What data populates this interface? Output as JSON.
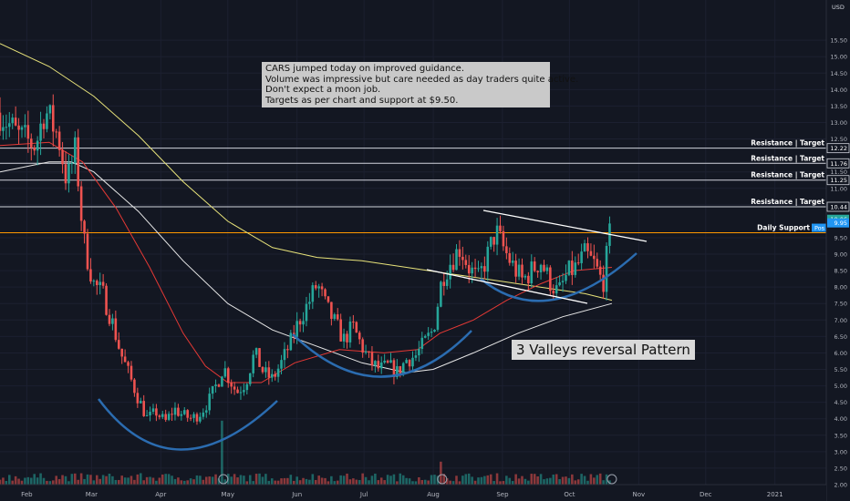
{
  "chart_data": {
    "type": "candlestick",
    "currency": "USD",
    "ylim": [
      2.0,
      16.5
    ],
    "x_labels": [
      {
        "label": "Feb",
        "day": 0
      },
      {
        "label": "Mar",
        "day": 29
      },
      {
        "label": "Apr",
        "day": 60
      },
      {
        "label": "May",
        "day": 90
      },
      {
        "label": "Jun",
        "day": 121
      },
      {
        "label": "Jul",
        "day": 151
      },
      {
        "label": "Aug",
        "day": 182
      },
      {
        "label": "Sep",
        "day": 213
      },
      {
        "label": "Oct",
        "day": 243
      },
      {
        "label": "Nov",
        "day": 274
      },
      {
        "label": "Dec",
        "day": 304
      },
      {
        "label": "2021",
        "day": 335
      }
    ],
    "x_range": [
      -12,
      358
    ],
    "y_ticks": [
      2.0,
      2.5,
      3.0,
      3.5,
      4.0,
      4.5,
      5.0,
      5.5,
      6.0,
      6.5,
      7.0,
      7.5,
      8.0,
      8.5,
      9.0,
      9.5,
      10.5,
      11.0,
      11.5,
      12.5,
      13.0,
      13.5,
      14.0,
      14.5,
      15.0,
      15.5
    ],
    "price_badges": [
      {
        "value": 10.44,
        "text": "10.44",
        "style": "outline"
      },
      {
        "value": 12.22,
        "text": "12.22",
        "style": "outline"
      },
      {
        "value": 11.76,
        "text": "11.76",
        "style": "outline"
      },
      {
        "value": 11.25,
        "text": "11.25",
        "style": "outline"
      },
      {
        "value": 10.06,
        "text": "10.06",
        "color": "#26a69a"
      },
      {
        "value": 9.95,
        "text": "9.95",
        "color": "#2196f3"
      }
    ],
    "resistance_lines": [
      {
        "value": 12.22,
        "label": "Resistance | Target"
      },
      {
        "value": 11.76,
        "label": "Resistance | Target"
      },
      {
        "value": 11.25,
        "label": "Resistance | Target"
      },
      {
        "value": 10.44,
        "label": "Resistance | Target"
      }
    ],
    "support_line": {
      "value": 9.65,
      "label": "Daily Support",
      "tag": "Pos",
      "color": "#ff9800"
    },
    "annotation": [
      "CARS jumped today on improved guidance.",
      "Volume was impressive but care needed as day traders quite active.",
      "Don't expect a moon job.",
      "Targets as per chart and support at $9.50."
    ],
    "pattern_label": "3 Valleys reversal Pattern",
    "price_path": [
      [
        -12,
        13.3
      ],
      [
        -4,
        12.6
      ],
      [
        4,
        12.3
      ],
      [
        8,
        13.4
      ],
      [
        14,
        12.6
      ],
      [
        18,
        11.2
      ],
      [
        22,
        12.2
      ],
      [
        24,
        10.4
      ],
      [
        26,
        9.2
      ],
      [
        30,
        8.1
      ],
      [
        34,
        7.8
      ],
      [
        38,
        7.0
      ],
      [
        42,
        6.0
      ],
      [
        46,
        5.3
      ],
      [
        50,
        4.6
      ],
      [
        54,
        4.0
      ],
      [
        58,
        4.2
      ],
      [
        62,
        3.9
      ],
      [
        66,
        4.3
      ],
      [
        70,
        4.1
      ],
      [
        74,
        4.0
      ],
      [
        78,
        4.2
      ],
      [
        82,
        4.6
      ],
      [
        86,
        5.2
      ],
      [
        88,
        5.6
      ],
      [
        90,
        5.3
      ],
      [
        94,
        4.8
      ],
      [
        98,
        5.1
      ],
      [
        102,
        6.0
      ],
      [
        106,
        5.4
      ],
      [
        110,
        5.2
      ],
      [
        114,
        5.7
      ],
      [
        118,
        6.3
      ],
      [
        122,
        7.0
      ],
      [
        126,
        7.5
      ],
      [
        130,
        8.1
      ],
      [
        134,
        7.4
      ],
      [
        138,
        6.9
      ],
      [
        142,
        6.4
      ],
      [
        146,
        6.8
      ],
      [
        150,
        6.2
      ],
      [
        154,
        5.7
      ],
      [
        158,
        5.5
      ],
      [
        162,
        5.6
      ],
      [
        166,
        5.4
      ],
      [
        170,
        5.8
      ],
      [
        174,
        5.9
      ],
      [
        178,
        6.3
      ],
      [
        182,
        6.7
      ],
      [
        186,
        8.3
      ],
      [
        190,
        8.8
      ],
      [
        194,
        9.2
      ],
      [
        198,
        8.6
      ],
      [
        202,
        8.2
      ],
      [
        206,
        8.9
      ],
      [
        210,
        9.7
      ],
      [
        214,
        9.1
      ],
      [
        218,
        8.6
      ],
      [
        222,
        8.2
      ],
      [
        226,
        8.5
      ],
      [
        230,
        8.8
      ],
      [
        234,
        8.2
      ],
      [
        238,
        7.8
      ],
      [
        242,
        8.4
      ],
      [
        246,
        8.6
      ],
      [
        250,
        9.0
      ],
      [
        254,
        8.7
      ],
      [
        258,
        8.1
      ],
      [
        262,
        10.06
      ]
    ],
    "volume_spikes": [
      {
        "day": 88,
        "value": 0.78
      },
      {
        "day": 186,
        "value": 0.28
      },
      {
        "day": 262,
        "value": 1.0
      }
    ],
    "moving_averages": [
      {
        "color": "#e8e37a",
        "points": [
          [
            -12,
            15.4
          ],
          [
            10,
            14.7
          ],
          [
            30,
            13.8
          ],
          [
            50,
            12.6
          ],
          [
            70,
            11.2
          ],
          [
            90,
            10.0
          ],
          [
            110,
            9.2
          ],
          [
            130,
            8.9
          ],
          [
            150,
            8.8
          ],
          [
            170,
            8.6
          ],
          [
            190,
            8.4
          ],
          [
            210,
            8.2
          ],
          [
            230,
            8.0
          ],
          [
            250,
            7.8
          ],
          [
            262,
            7.6
          ]
        ]
      },
      {
        "color": "#e8e8e8",
        "points": [
          [
            -12,
            11.5
          ],
          [
            10,
            11.8
          ],
          [
            20,
            11.8
          ],
          [
            30,
            11.5
          ],
          [
            50,
            10.3
          ],
          [
            70,
            8.8
          ],
          [
            90,
            7.5
          ],
          [
            110,
            6.7
          ],
          [
            130,
            6.2
          ],
          [
            150,
            5.7
          ],
          [
            170,
            5.4
          ],
          [
            182,
            5.5
          ],
          [
            200,
            6.0
          ],
          [
            220,
            6.6
          ],
          [
            240,
            7.1
          ],
          [
            262,
            7.5
          ]
        ]
      },
      {
        "color": "#e53935",
        "points": [
          [
            -12,
            12.3
          ],
          [
            10,
            12.4
          ],
          [
            25,
            11.8
          ],
          [
            40,
            10.4
          ],
          [
            55,
            8.6
          ],
          [
            70,
            6.6
          ],
          [
            80,
            5.6
          ],
          [
            90,
            5.1
          ],
          [
            105,
            5.1
          ],
          [
            120,
            5.7
          ],
          [
            140,
            6.1
          ],
          [
            160,
            6.0
          ],
          [
            175,
            6.1
          ],
          [
            185,
            6.6
          ],
          [
            200,
            7.0
          ],
          [
            215,
            7.6
          ],
          [
            230,
            8.1
          ],
          [
            245,
            8.5
          ],
          [
            262,
            8.6
          ]
        ]
      }
    ]
  }
}
